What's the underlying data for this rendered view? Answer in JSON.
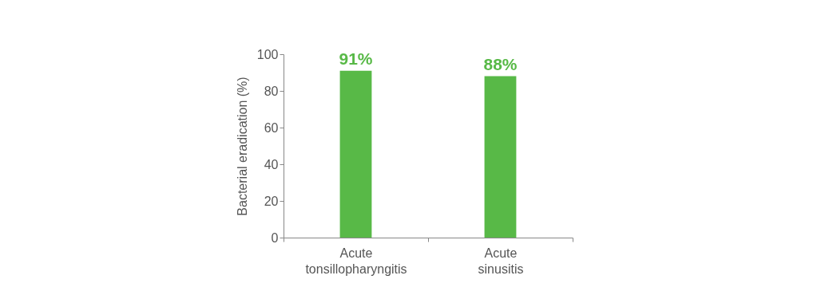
{
  "chart_data": {
    "type": "bar",
    "ylabel": "Bacterial eradication (%)",
    "categories": [
      "Acute\ntonsillopharyngitis",
      "Acute\nsinusitis"
    ],
    "values": [
      91,
      88
    ],
    "value_labels": [
      "91%",
      "88%"
    ],
    "color": "#58b947",
    "ylim": [
      0,
      100
    ],
    "yticks": [
      0,
      20,
      40,
      60,
      80,
      100
    ],
    "grid": false
  }
}
